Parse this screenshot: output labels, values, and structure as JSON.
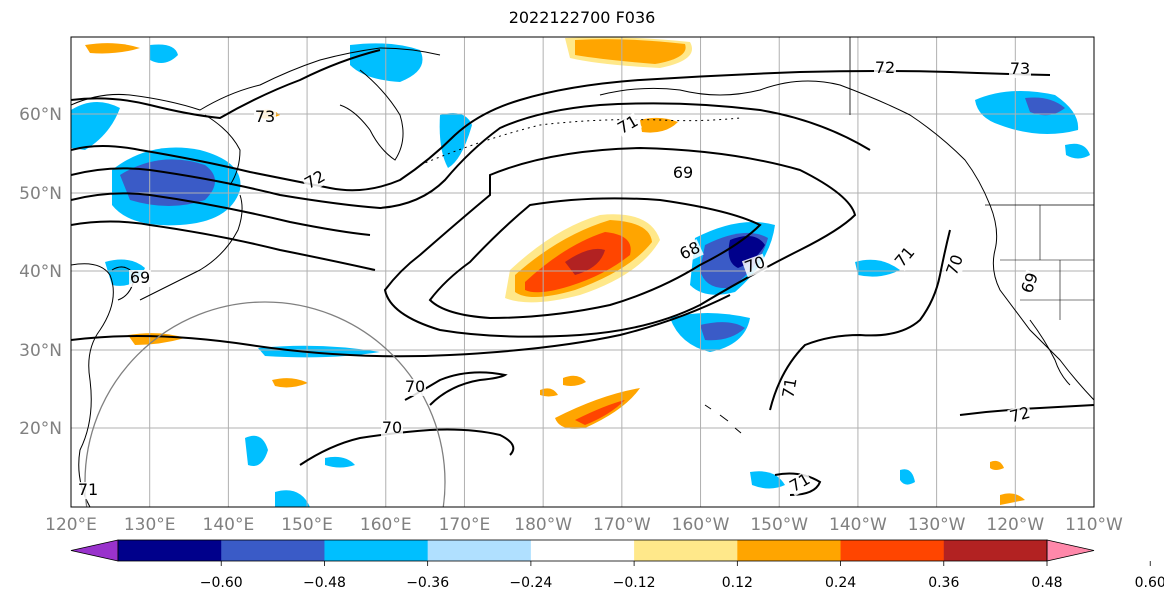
{
  "title": "2022122700 F036",
  "map": {
    "region": "North Pacific",
    "lon_labels": [
      "120°E",
      "130°E",
      "140°E",
      "150°E",
      "160°E",
      "170°E",
      "180°W",
      "170°W",
      "160°W",
      "150°W",
      "140°W",
      "130°W",
      "120°W",
      "110°W"
    ],
    "lat_labels": [
      "20°N",
      "30°N",
      "40°N",
      "50°N",
      "60°N"
    ],
    "contour_labels": [
      {
        "text": "72"
      },
      {
        "text": "73"
      },
      {
        "text": "73"
      },
      {
        "text": "71"
      },
      {
        "text": "72"
      },
      {
        "text": "69"
      },
      {
        "text": "68"
      },
      {
        "text": "70"
      },
      {
        "text": "71"
      },
      {
        "text": "70"
      },
      {
        "text": "69"
      },
      {
        "text": "69"
      },
      {
        "text": "70"
      },
      {
        "text": "70"
      },
      {
        "text": "71"
      },
      {
        "text": "72"
      },
      {
        "text": "71"
      },
      {
        "text": "71"
      }
    ],
    "colors": {
      "land_outline": "#000000",
      "grid": "#b0b0b0",
      "contour": "#000000",
      "circle": "#808080"
    }
  },
  "colorbar": {
    "colors": [
      "#9932cc",
      "#00008b",
      "#3a5bc7",
      "#00bfff",
      "#b0e0ff",
      "#ffffff",
      "#ffe88a",
      "#ffa500",
      "#ff4500",
      "#b22222",
      "#ff88aa"
    ],
    "tick_labels": [
      "-0.60",
      "-0.48",
      "-0.36",
      "-0.24",
      "-0.12",
      "0.12",
      "0.24",
      "0.36",
      "0.48",
      "0.60"
    ]
  }
}
